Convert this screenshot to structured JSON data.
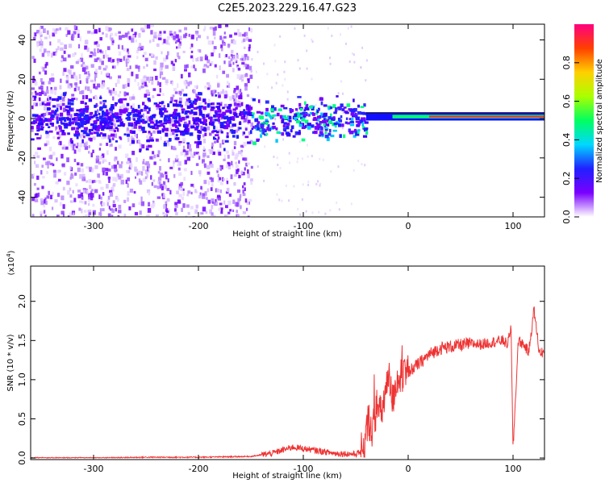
{
  "title": "C2E5.2023.229.16.47.G23",
  "chart_data": [
    {
      "type": "heatmap",
      "xlabel": "Height of straight line (km)",
      "ylabel": "Frequency (Hz)",
      "xlim": [
        -360,
        130
      ],
      "ylim": [
        -50,
        48
      ],
      "xticks": [
        -300,
        -200,
        -100,
        0,
        100
      ],
      "yticks": [
        -40,
        -20,
        0,
        20,
        40
      ],
      "colorbar": {
        "label": "Normalized spectral amplitude",
        "ticks": [
          "0.0",
          "0.2",
          "0.4",
          "0.6",
          "0.8"
        ],
        "colors": [
          "#ffffff",
          "#7a00ff",
          "#2020ff",
          "#00d8ff",
          "#00ff60",
          "#aaff00",
          "#ffd000",
          "#ff4000",
          "#ff0080"
        ]
      },
      "features": [
        {
          "x_range": [
            -360,
            -150
          ],
          "freq_range": [
            -50,
            48
          ],
          "amplitude": 0.15
        },
        {
          "x_range": [
            -150,
            -40
          ],
          "freq_range": [
            -12,
            10
          ],
          "amplitude": 0.35
        },
        {
          "x_range": [
            -40,
            130
          ],
          "freq_center": 1,
          "freq_halfwidth": 2,
          "amplitude": 0.9
        }
      ]
    },
    {
      "type": "line",
      "xlabel": "Height of straight line (km)",
      "ylabel": "SNR (10 * v/v)",
      "y_multiplier_label": "(x10",
      "y_multiplier_exp": "4",
      "xlim": [
        -360,
        130
      ],
      "ylim": [
        -0.02,
        2.45
      ],
      "xticks": [
        -300,
        -200,
        -100,
        0,
        100
      ],
      "yticks": [
        "0.0",
        "0.5",
        "1.0",
        "1.5",
        "2.0"
      ],
      "series_color": "#ee3333",
      "x": [
        -360,
        -300,
        -250,
        -200,
        -150,
        -130,
        -110,
        -90,
        -70,
        -50,
        -42,
        -38,
        -34,
        -30,
        -26,
        -22,
        -18,
        -15,
        -12,
        -8,
        -4,
        0,
        10,
        20,
        30,
        40,
        50,
        60,
        70,
        80,
        90,
        95,
        98,
        100,
        105,
        110,
        115,
        120,
        125,
        130
      ],
      "y": [
        0.0,
        0.0,
        0.01,
        0.01,
        0.02,
        0.06,
        0.14,
        0.1,
        0.06,
        0.05,
        0.1,
        0.5,
        0.35,
        0.65,
        0.55,
        0.8,
        1.0,
        0.72,
        0.95,
        1.05,
        1.0,
        1.1,
        1.2,
        1.32,
        1.4,
        1.42,
        1.44,
        1.46,
        1.45,
        1.48,
        1.5,
        1.45,
        1.7,
        0.1,
        1.5,
        1.45,
        1.35,
        1.9,
        1.35,
        1.35
      ]
    }
  ]
}
